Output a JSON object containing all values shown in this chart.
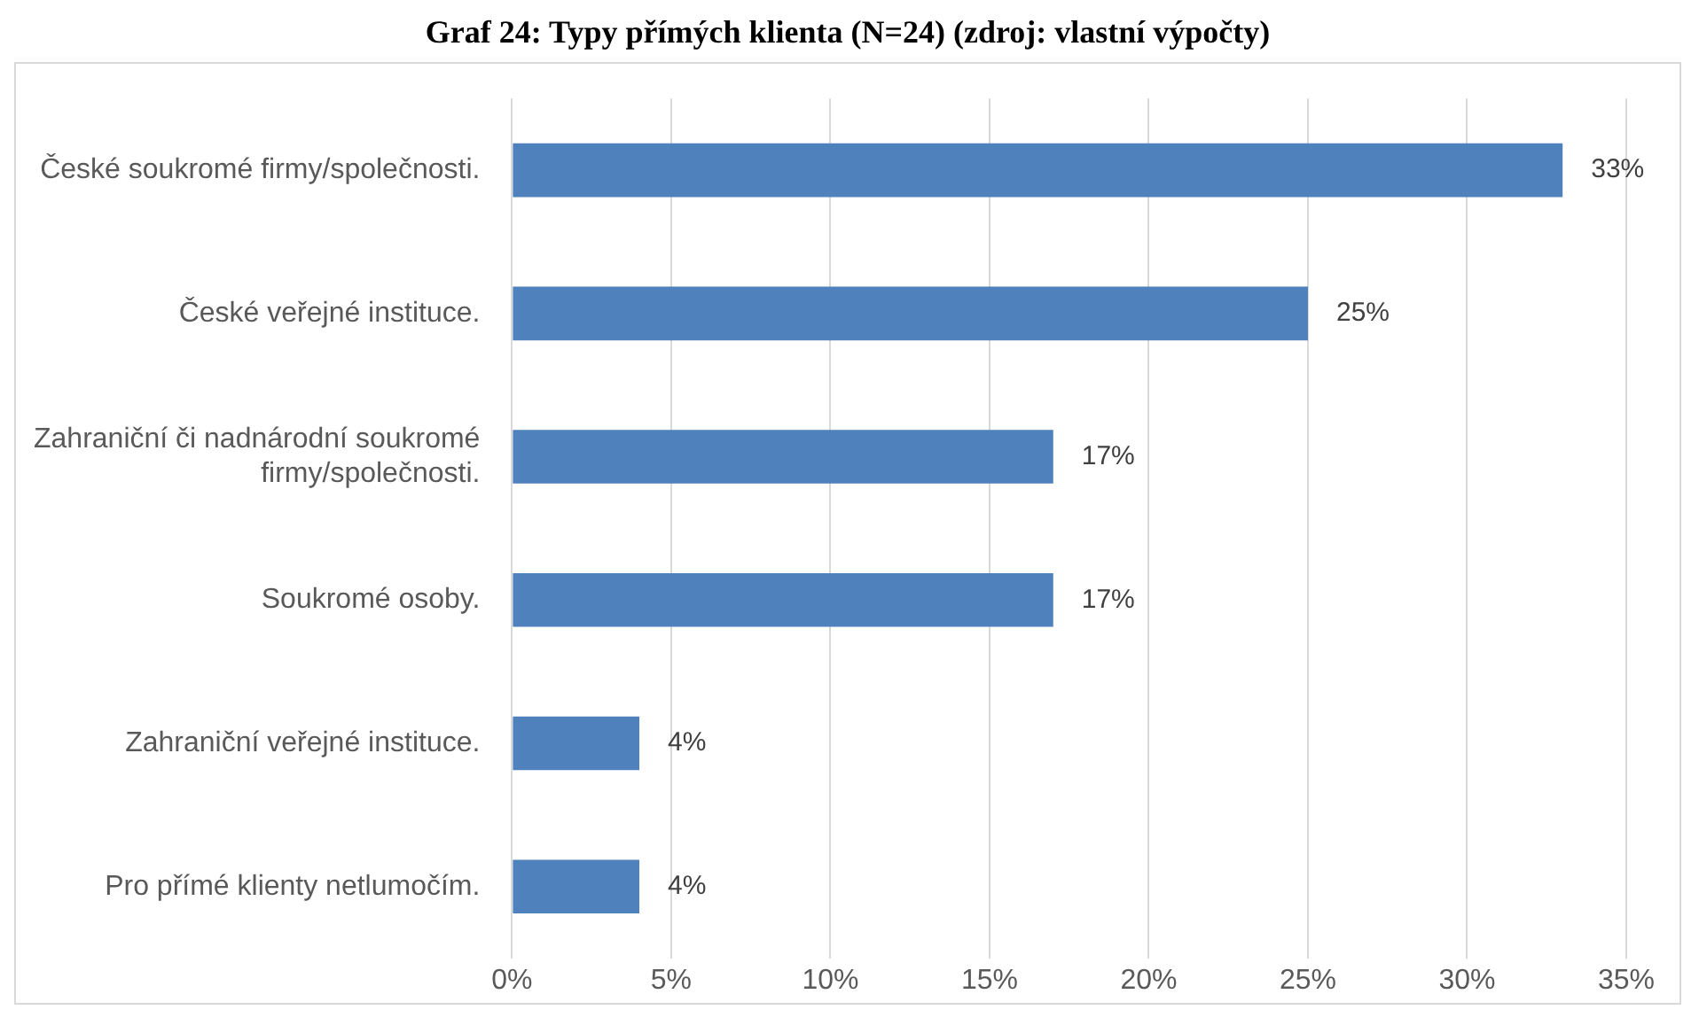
{
  "chart_data": {
    "type": "bar",
    "orientation": "horizontal",
    "title": "Graf 24: Typy přímých klienta (N=24) (zdroj: vlastní výpočty)",
    "categories": [
      "České soukromé firmy/společnosti.",
      "České veřejné instituce.",
      "Zahraniční či nadnárodní soukromé firmy/společnosti.",
      "Soukromé osoby.",
      "Zahraniční veřejné instituce.",
      "Pro přímé klienty netlumočím."
    ],
    "values": [
      33,
      25,
      17,
      17,
      4,
      4
    ],
    "color": "#4f81bd",
    "xlim": [
      0,
      35
    ],
    "xticks": [
      {
        "value": 0,
        "label": "0%"
      },
      {
        "value": 5,
        "label": "5%"
      },
      {
        "value": 10,
        "label": "10%"
      },
      {
        "value": 15,
        "label": "15%"
      },
      {
        "value": 20,
        "label": "20%"
      },
      {
        "value": 25,
        "label": "25%"
      },
      {
        "value": 30,
        "label": "30%"
      },
      {
        "value": 35,
        "label": "35%"
      }
    ],
    "grid": "x",
    "legend": false,
    "value_labels": [
      "33%",
      "25%",
      "17%",
      "17%",
      "4%",
      "4%"
    ]
  }
}
